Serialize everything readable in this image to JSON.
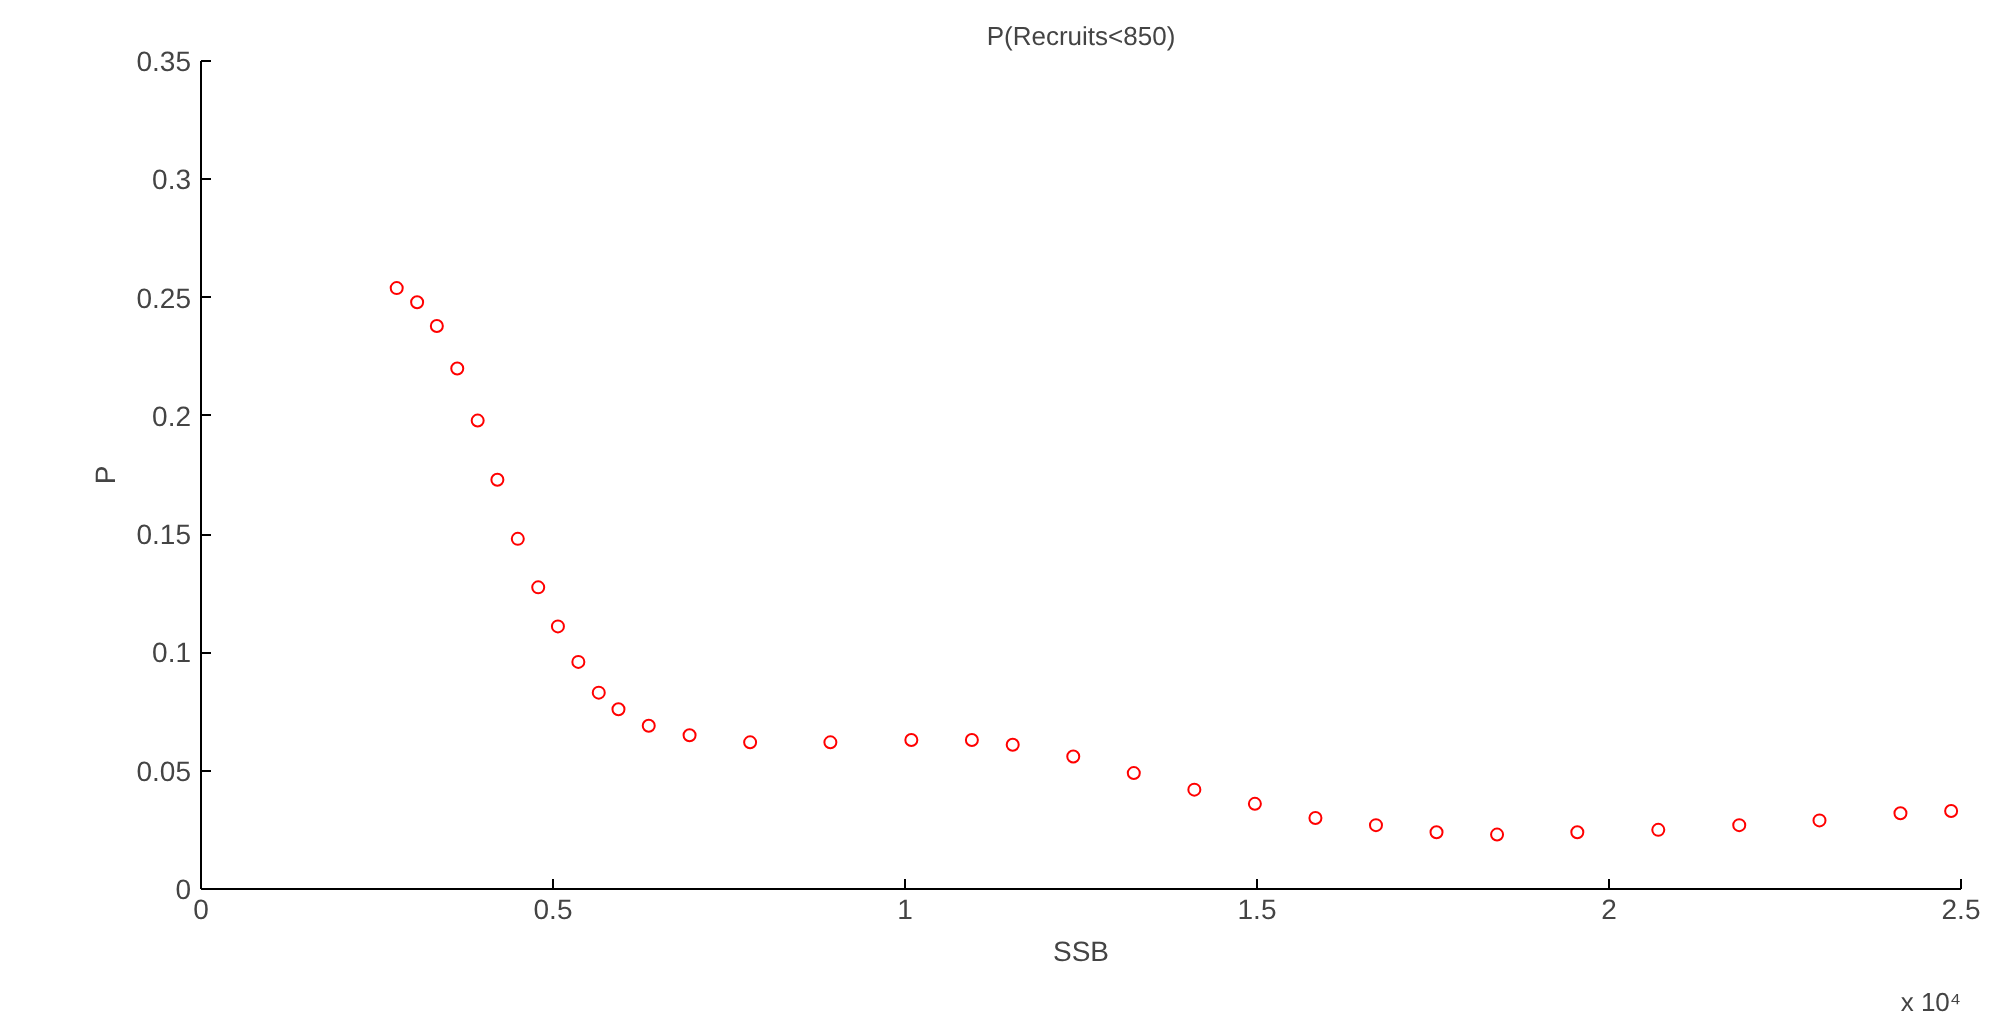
{
  "chart_data": {
    "type": "scatter",
    "title": "P(Recruits<850)",
    "xlabel": "SSB",
    "ylabel": "P",
    "annotations": [
      "x 10⁴"
    ],
    "xlim": [
      0,
      2.5
    ],
    "xticks": [
      0,
      0.5,
      1,
      1.5,
      2,
      2.5
    ],
    "ylim": [
      0,
      0.35
    ],
    "yticks": [
      0,
      0.05,
      0.1,
      0.15,
      0.2,
      0.25,
      0.3,
      0.35
    ],
    "grid": false,
    "marker": "circle",
    "series": [
      {
        "color": "#ff0000",
        "x": [
          0.278,
          0.307,
          0.335,
          0.364,
          0.393,
          0.421,
          0.45,
          0.479,
          0.507,
          0.536,
          0.565,
          0.593,
          0.636,
          0.694,
          0.78,
          0.894,
          1.009,
          1.095,
          1.153,
          1.239,
          1.325,
          1.411,
          1.497,
          1.583,
          1.669,
          1.755,
          1.841,
          1.955,
          2.07,
          2.185,
          2.299,
          2.414,
          2.486
        ],
        "values": [
          0.254,
          0.248,
          0.238,
          0.22,
          0.198,
          0.173,
          0.148,
          0.1275,
          0.111,
          0.096,
          0.083,
          0.076,
          0.069,
          0.065,
          0.062,
          0.062,
          0.063,
          0.063,
          0.061,
          0.056,
          0.049,
          0.042,
          0.036,
          0.03,
          0.027,
          0.024,
          0.023,
          0.024,
          0.025,
          0.027,
          0.029,
          0.032,
          0.033
        ]
      }
    ]
  }
}
